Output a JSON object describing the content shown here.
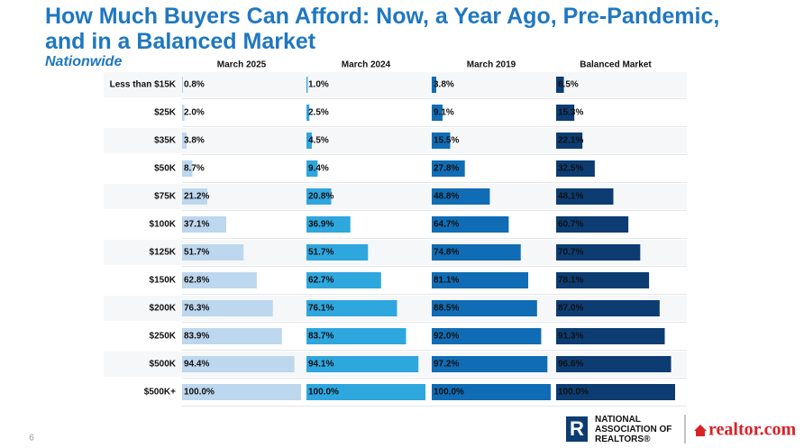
{
  "chart_data": {
    "type": "bar",
    "orientation": "horizontal",
    "title": "How Much Buyers Can Afford: Now, a Year Ago, Pre-Pandemic, and in a Balanced Market",
    "subtitle": "Nationwide",
    "categories": [
      "Less than $15K",
      "$25K",
      "$35K",
      "$50K",
      "$75K",
      "$100K",
      "$125K",
      "$150K",
      "$200K",
      "$250K",
      "$500K",
      "$500K+"
    ],
    "xlim": [
      0,
      100
    ],
    "series": [
      {
        "name": "March 2025",
        "color": "#bdd7ee",
        "values": [
          0.8,
          2.0,
          3.8,
          8.7,
          21.2,
          37.1,
          51.7,
          62.8,
          76.3,
          83.9,
          94.4,
          100.0
        ],
        "value_labels": [
          "0.8%",
          "2.0%",
          "3.8%",
          "8.7%",
          "21.2%",
          "37.1%",
          "51.7%",
          "62.8%",
          "76.3%",
          "83.9%",
          "94.4%",
          "100.0%"
        ]
      },
      {
        "name": "March 2024",
        "color": "#2ea6de",
        "values": [
          1.0,
          2.5,
          4.5,
          9.4,
          20.8,
          36.9,
          51.7,
          62.7,
          76.1,
          83.7,
          94.1,
          100.0
        ],
        "value_labels": [
          "1.0%",
          "2.5%",
          "4.5%",
          "9.4%",
          "20.8%",
          "36.9%",
          "51.7%",
          "62.7%",
          "76.1%",
          "83.7%",
          "94.1%",
          "100.0%"
        ]
      },
      {
        "name": "March 2019",
        "color": "#106cb4",
        "values": [
          3.8,
          9.1,
          15.5,
          27.8,
          48.8,
          64.7,
          74.8,
          81.1,
          88.5,
          92.0,
          97.2,
          100.0
        ],
        "value_labels": [
          "3.8%",
          "9.1%",
          "15.5%",
          "27.8%",
          "48.8%",
          "64.7%",
          "74.8%",
          "81.1%",
          "88.5%",
          "92.0%",
          "97.2%",
          "100.0%"
        ]
      },
      {
        "name": "Balanced Market",
        "color": "#0c3c72",
        "values": [
          6.5,
          15.3,
          22.1,
          32.5,
          48.1,
          60.7,
          70.7,
          78.1,
          87.0,
          91.3,
          96.6,
          100.0
        ],
        "value_labels": [
          "6.5%",
          "15.3%",
          "22.1%",
          "32.5%",
          "48.1%",
          "60.7%",
          "70.7%",
          "78.1%",
          "87.0%",
          "91.3%",
          "96.6%",
          "100.0%"
        ]
      }
    ]
  },
  "footer": {
    "page_number": "6",
    "nar_logo": "NATIONAL ASSOCIATION OF REALTORS®",
    "realtor_logo": "realtor.com"
  }
}
